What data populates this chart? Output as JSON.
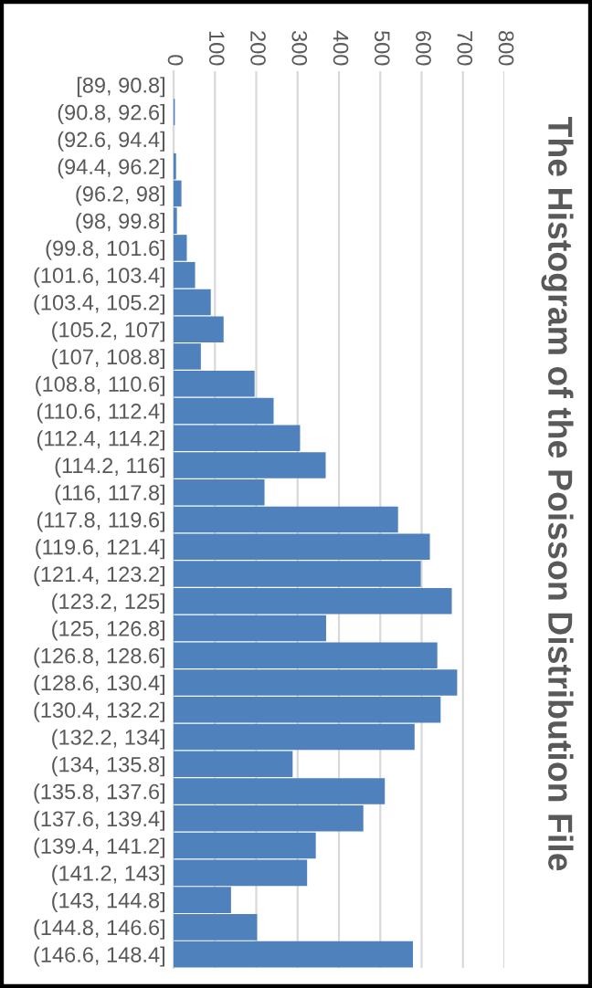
{
  "chart_data": {
    "type": "bar",
    "orientation": "horizontal",
    "title": "The Histogram of the Poisson Distribution File",
    "categories": [
      "[89, 90.8]",
      "(90.8, 92.6]",
      "(92.6, 94.4]",
      "(94.4, 96.2]",
      "(96.2, 98]",
      "(98, 99.8]",
      "(99.8, 101.6]",
      "(101.6, 103.4]",
      "(103.4, 105.2]",
      "(105.2, 107]",
      "(107, 108.8]",
      "(108.8, 110.6]",
      "(110.6, 112.4]",
      "(112.4, 114.2]",
      "(114.2, 116]",
      "(116, 117.8]",
      "(117.8, 119.6]",
      "(119.6, 121.4]",
      "(121.4, 123.2]",
      "(123.2, 125]",
      "(125, 126.8]",
      "(126.8, 128.6]",
      "(128.6, 130.4]",
      "(130.4, 132.2]",
      "(132.2, 134]",
      "(134, 135.8]",
      "(135.8, 137.6]",
      "(137.6, 139.4]",
      "(139.4, 141.2]",
      "(141.2, 143]",
      "(143, 144.8]",
      "(144.8, 146.6]",
      "(146.6, 148.4]"
    ],
    "values": [
      0,
      3,
      0,
      6,
      19,
      8,
      32,
      52,
      90,
      121,
      66,
      196,
      242,
      306,
      368,
      220,
      543,
      620,
      598,
      673,
      369,
      638,
      686,
      646,
      583,
      288,
      511,
      459,
      344,
      323,
      139,
      202,
      579
    ],
    "color": "#4f81bd",
    "xlim": [
      0,
      800
    ],
    "xticks": [
      0,
      100,
      200,
      300,
      400,
      500,
      600,
      700,
      800
    ],
    "grid": "x"
  }
}
